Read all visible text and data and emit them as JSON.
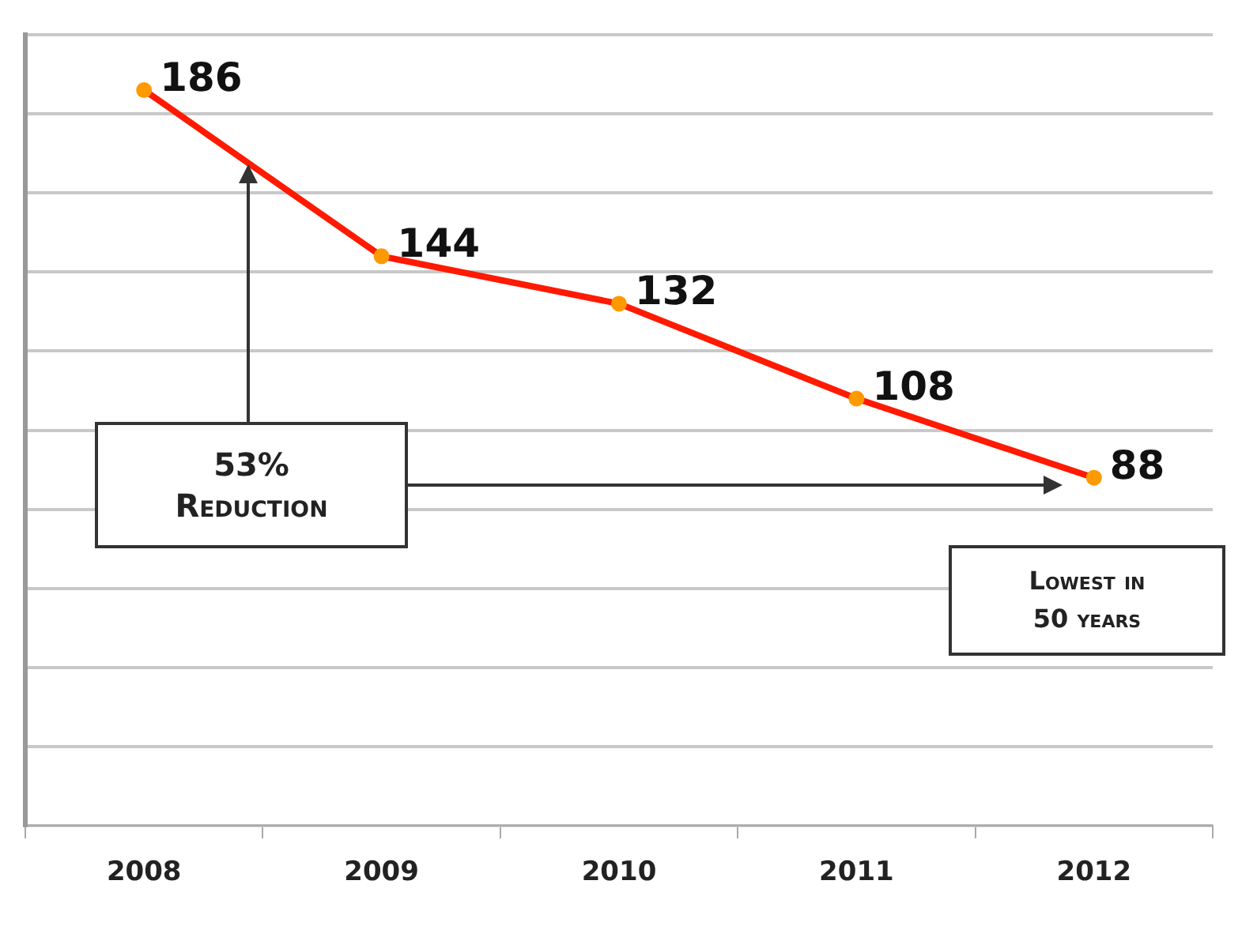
{
  "chart_data": {
    "type": "line",
    "categories": [
      "2008",
      "2009",
      "2010",
      "2011",
      "2012"
    ],
    "series": [
      {
        "color": "#ff1a00",
        "values": [
          186,
          144,
          132,
          108,
          88
        ]
      }
    ],
    "ylim": [
      0,
      200
    ],
    "yticks": [
      {
        "value": 0,
        "label": null
      },
      {
        "value": 20,
        "label": null
      },
      {
        "value": 40,
        "label": null
      },
      {
        "value": 60,
        "label": null
      },
      {
        "value": 80,
        "label": null
      },
      {
        "value": 100,
        "label": null
      },
      {
        "value": 120,
        "label": null
      },
      {
        "value": 140,
        "label": null
      },
      {
        "value": 160,
        "label": null
      },
      {
        "value": 180,
        "label": null
      },
      {
        "value": 200,
        "label": null
      }
    ],
    "tick_labels": "x",
    "grid": "y",
    "legend": false,
    "marker": "circle",
    "line_style": "solid",
    "data_labels": true,
    "annotations": [
      "53% Reduction",
      "Lowest in 50 years"
    ]
  }
}
